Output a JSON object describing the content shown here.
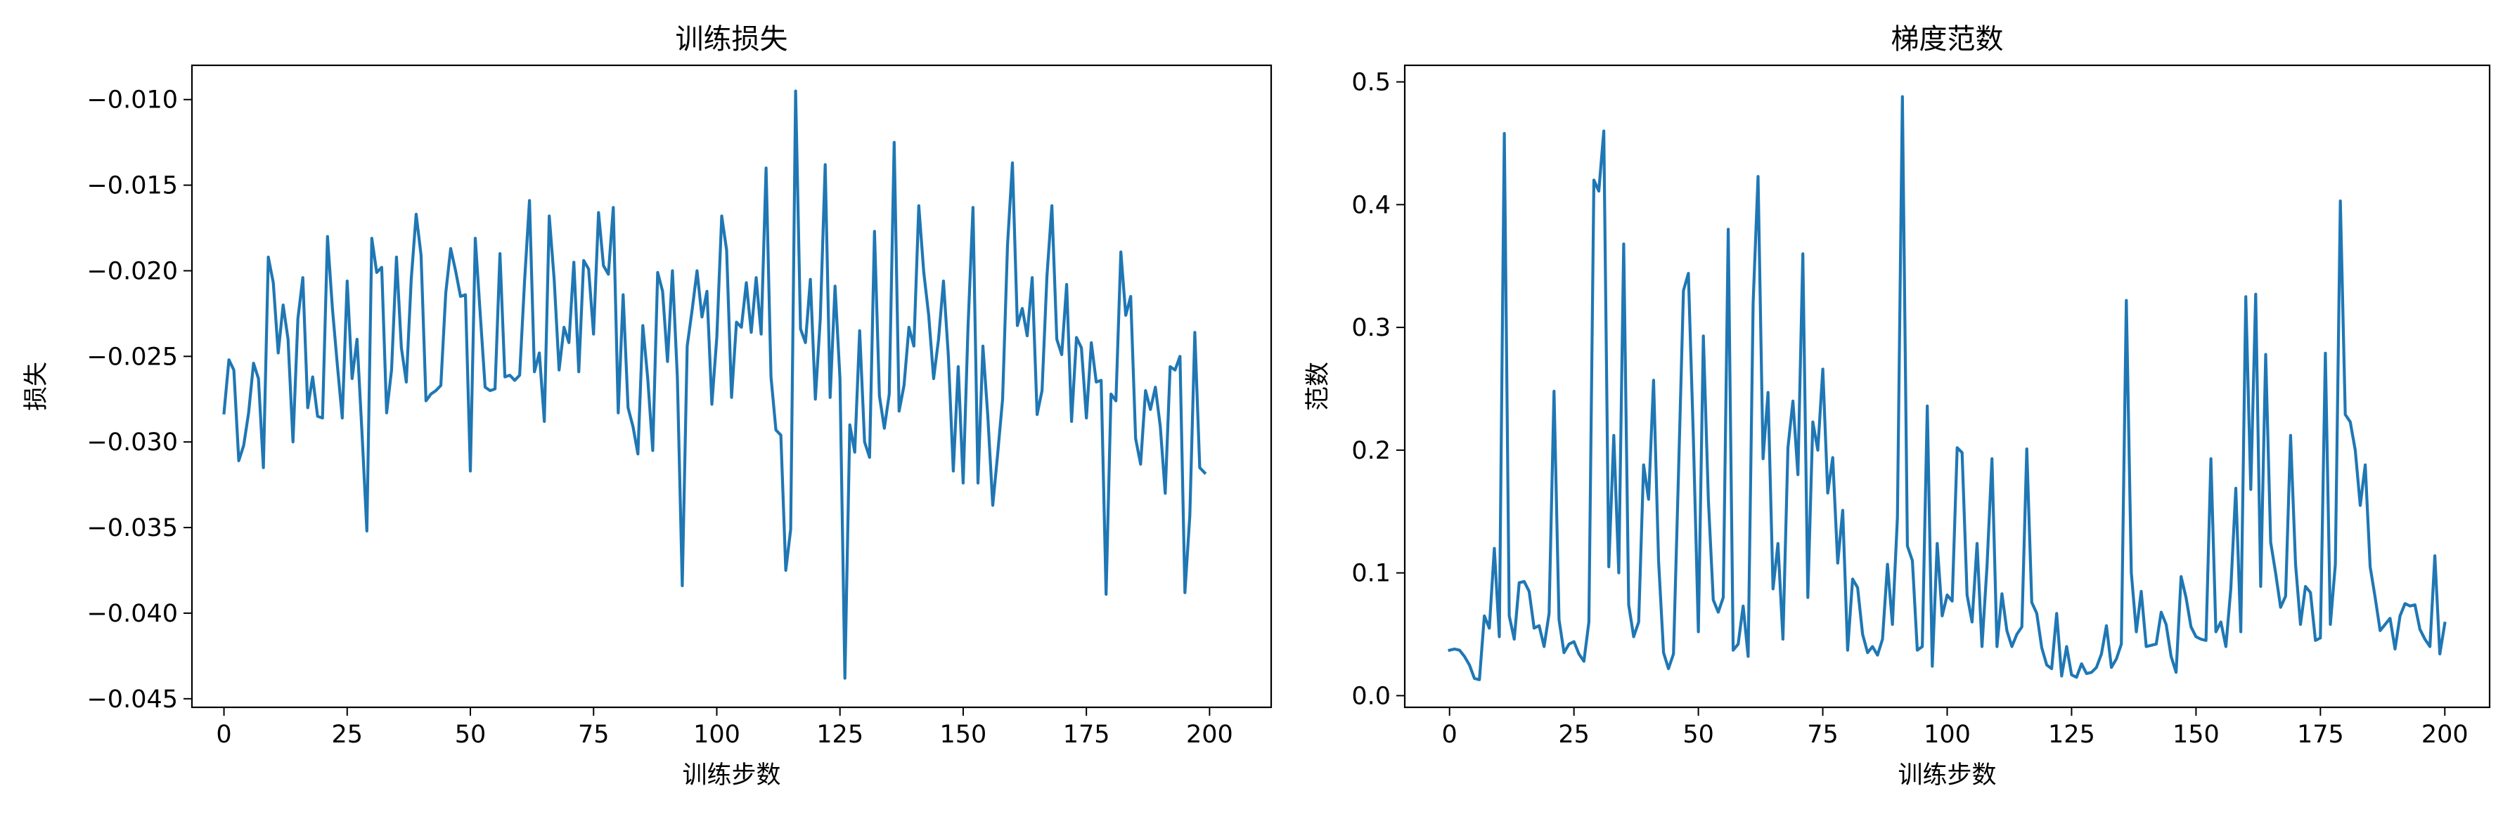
{
  "chart_data": [
    {
      "type": "line",
      "title": "训练损失",
      "xlabel": "训练步数",
      "ylabel": "损失",
      "xlim": [
        -6.5,
        212.5
      ],
      "ylim": [
        -0.0455,
        -0.008
      ],
      "xticks": [
        0,
        25,
        50,
        75,
        100,
        125,
        150,
        175,
        200
      ],
      "xtick_labels": [
        "0",
        "25",
        "50",
        "75",
        "100",
        "125",
        "150",
        "175",
        "200"
      ],
      "yticks": [
        -0.045,
        -0.04,
        -0.035,
        -0.03,
        -0.025,
        -0.02,
        -0.015,
        -0.01
      ],
      "ytick_labels": [
        "−0.045",
        "−0.040",
        "−0.035",
        "−0.030",
        "−0.025",
        "−0.020",
        "−0.015",
        "−0.010"
      ],
      "grid": false,
      "color": "#1f77b4",
      "x_start": 0,
      "x_step": 1,
      "values": [
        -0.0283,
        -0.0252,
        -0.0258,
        -0.0311,
        -0.0302,
        -0.0283,
        -0.0254,
        -0.0263,
        -0.0315,
        -0.0192,
        -0.0207,
        -0.0248,
        -0.022,
        -0.024,
        -0.03,
        -0.0228,
        -0.0204,
        -0.028,
        -0.0262,
        -0.0285,
        -0.0286,
        -0.018,
        -0.0222,
        -0.0255,
        -0.0286,
        -0.0206,
        -0.0263,
        -0.024,
        -0.0294,
        -0.0352,
        -0.0181,
        -0.0201,
        -0.0198,
        -0.0283,
        -0.0258,
        -0.0192,
        -0.0245,
        -0.0265,
        -0.0205,
        -0.0167,
        -0.0191,
        -0.0276,
        -0.0272,
        -0.027,
        -0.0267,
        -0.0213,
        -0.0187,
        -0.02,
        -0.0215,
        -0.0214,
        -0.0317,
        -0.0181,
        -0.0225,
        -0.0268,
        -0.027,
        -0.0269,
        -0.019,
        -0.0262,
        -0.0261,
        -0.0264,
        -0.0261,
        -0.0206,
        -0.0159,
        -0.0259,
        -0.0248,
        -0.0288,
        -0.0168,
        -0.0205,
        -0.0258,
        -0.0233,
        -0.0242,
        -0.0195,
        -0.0259,
        -0.0194,
        -0.0199,
        -0.0237,
        -0.0166,
        -0.0197,
        -0.0202,
        -0.0163,
        -0.0283,
        -0.0214,
        -0.028,
        -0.0291,
        -0.0307,
        -0.0232,
        -0.0263,
        -0.0305,
        -0.0201,
        -0.0212,
        -0.0253,
        -0.02,
        -0.0262,
        -0.0384,
        -0.0244,
        -0.0223,
        -0.02,
        -0.0227,
        -0.0212,
        -0.0278,
        -0.0239,
        -0.0168,
        -0.0188,
        -0.0274,
        -0.023,
        -0.0233,
        -0.0207,
        -0.0236,
        -0.0204,
        -0.0237,
        -0.014,
        -0.0262,
        -0.0293,
        -0.0296,
        -0.0375,
        -0.0351,
        -0.0095,
        -0.0234,
        -0.0242,
        -0.0205,
        -0.0275,
        -0.0228,
        -0.0138,
        -0.0274,
        -0.0209,
        -0.0263,
        -0.0438,
        -0.029,
        -0.0306,
        -0.0235,
        -0.03,
        -0.0309,
        -0.0177,
        -0.0273,
        -0.0292,
        -0.0272,
        -0.0125,
        -0.0282,
        -0.0267,
        -0.0233,
        -0.0244,
        -0.0162,
        -0.0201,
        -0.0226,
        -0.0263,
        -0.024,
        -0.0206,
        -0.025,
        -0.0317,
        -0.0256,
        -0.0324,
        -0.0232,
        -0.0163,
        -0.0324,
        -0.0244,
        -0.0285,
        -0.0337,
        -0.0307,
        -0.0275,
        -0.0185,
        -0.0137,
        -0.0232,
        -0.0222,
        -0.0238,
        -0.0204,
        -0.0284,
        -0.027,
        -0.0203,
        -0.0162,
        -0.024,
        -0.0249,
        -0.0208,
        -0.0288,
        -0.0239,
        -0.0245,
        -0.0286,
        -0.0242,
        -0.0265,
        -0.0264,
        -0.0389,
        -0.0272,
        -0.0276,
        -0.0189,
        -0.0226,
        -0.0215,
        -0.0298,
        -0.0313,
        -0.027,
        -0.0281,
        -0.0268,
        -0.0291,
        -0.033,
        -0.0256,
        -0.0258,
        -0.025,
        -0.0388,
        -0.0343,
        -0.0236,
        -0.0315,
        -0.0318
      ]
    },
    {
      "type": "line",
      "title": "梯度范数",
      "xlabel": "训练步数",
      "ylabel": "范数",
      "xlim": [
        -9,
        209
      ],
      "ylim": [
        -0.0095,
        0.5135
      ],
      "xticks": [
        0,
        25,
        50,
        75,
        100,
        125,
        150,
        175,
        200
      ],
      "xtick_labels": [
        "0",
        "25",
        "50",
        "75",
        "100",
        "125",
        "150",
        "175",
        "200"
      ],
      "yticks": [
        0.0,
        0.1,
        0.2,
        0.3,
        0.4,
        0.5
      ],
      "ytick_labels": [
        "0.0",
        "0.1",
        "0.2",
        "0.3",
        "0.4",
        "0.5"
      ],
      "grid": false,
      "color": "#1f77b4",
      "x_start": 0,
      "x_step": 1,
      "values": [
        0.037,
        0.038,
        0.037,
        0.032,
        0.025,
        0.014,
        0.013,
        0.065,
        0.055,
        0.12,
        0.048,
        0.458,
        0.065,
        0.046,
        0.092,
        0.093,
        0.085,
        0.055,
        0.057,
        0.04,
        0.067,
        0.248,
        0.062,
        0.035,
        0.042,
        0.044,
        0.034,
        0.028,
        0.06,
        0.42,
        0.411,
        0.46,
        0.105,
        0.212,
        0.1,
        0.368,
        0.074,
        0.048,
        0.06,
        0.188,
        0.16,
        0.257,
        0.11,
        0.035,
        0.022,
        0.034,
        0.18,
        0.33,
        0.344,
        0.21,
        0.052,
        0.293,
        0.16,
        0.078,
        0.068,
        0.08,
        0.38,
        0.037,
        0.042,
        0.073,
        0.032,
        0.32,
        0.423,
        0.193,
        0.247,
        0.087,
        0.124,
        0.046,
        0.202,
        0.24,
        0.18,
        0.36,
        0.08,
        0.223,
        0.2,
        0.266,
        0.165,
        0.194,
        0.108,
        0.151,
        0.037,
        0.095,
        0.088,
        0.05,
        0.035,
        0.04,
        0.033,
        0.046,
        0.107,
        0.058,
        0.145,
        0.488,
        0.122,
        0.11,
        0.037,
        0.04,
        0.236,
        0.024,
        0.124,
        0.065,
        0.082,
        0.077,
        0.202,
        0.198,
        0.082,
        0.06,
        0.124,
        0.04,
        0.105,
        0.193,
        0.04,
        0.083,
        0.053,
        0.04,
        0.05,
        0.056,
        0.201,
        0.076,
        0.067,
        0.039,
        0.025,
        0.022,
        0.067,
        0.016,
        0.04,
        0.017,
        0.015,
        0.026,
        0.018,
        0.019,
        0.023,
        0.034,
        0.057,
        0.023,
        0.03,
        0.042,
        0.322,
        0.1,
        0.052,
        0.085,
        0.04,
        0.041,
        0.042,
        0.068,
        0.058,
        0.032,
        0.019,
        0.097,
        0.08,
        0.056,
        0.048,
        0.046,
        0.045,
        0.193,
        0.052,
        0.06,
        0.04,
        0.087,
        0.169,
        0.052,
        0.325,
        0.168,
        0.327,
        0.089,
        0.278,
        0.125,
        0.1,
        0.072,
        0.081,
        0.212,
        0.107,
        0.058,
        0.089,
        0.084,
        0.045,
        0.047,
        0.279,
        0.058,
        0.107,
        0.403,
        0.229,
        0.223,
        0.2,
        0.155,
        0.188,
        0.105,
        0.08,
        0.053,
        0.058,
        0.063,
        0.038,
        0.065,
        0.075,
        0.073,
        0.074,
        0.054,
        0.046,
        0.04,
        0.114,
        0.034,
        0.059
      ]
    }
  ]
}
